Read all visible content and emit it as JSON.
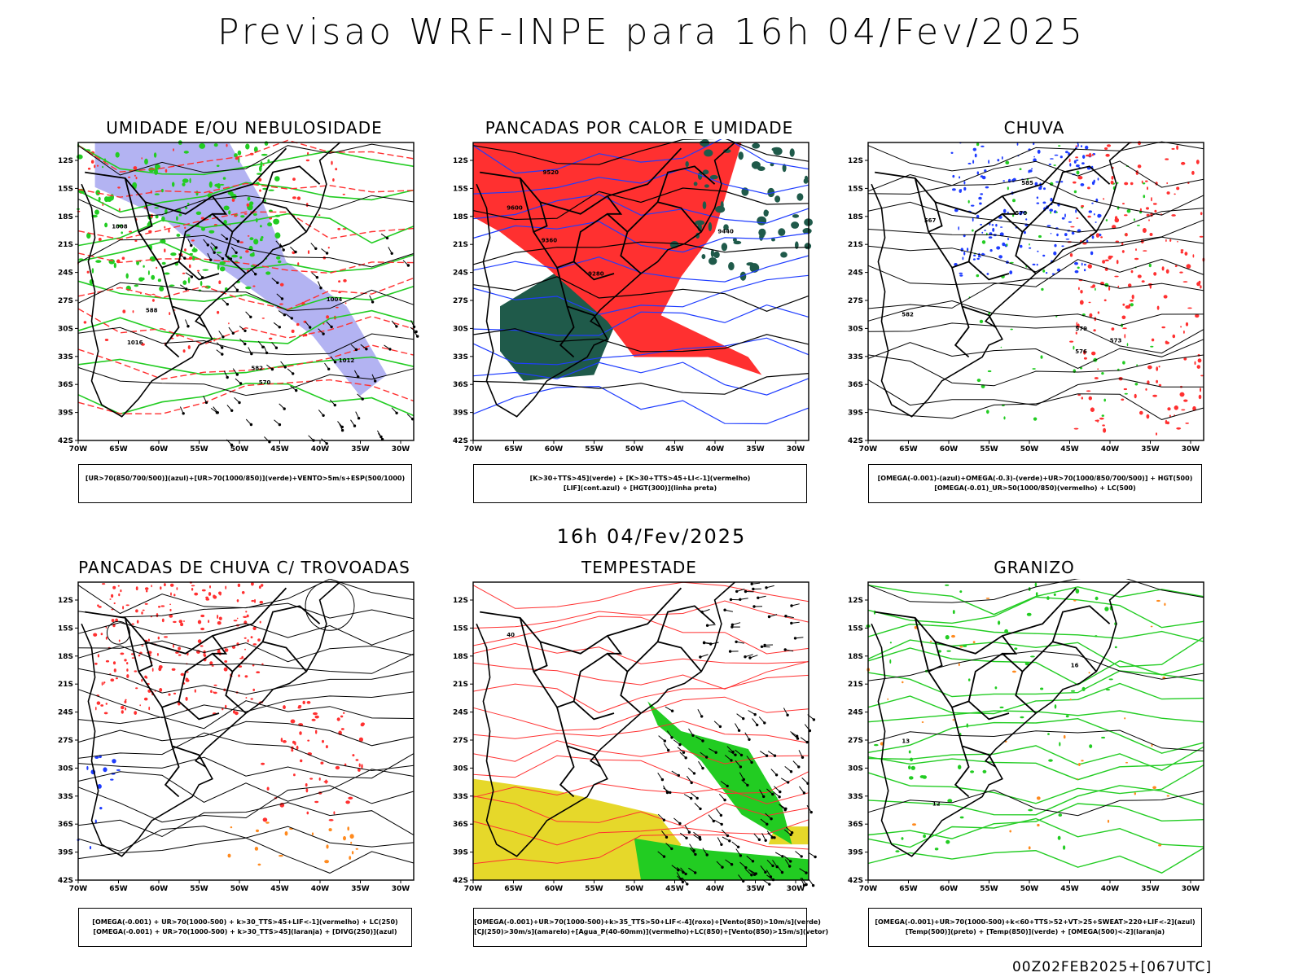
{
  "header": {
    "title": "Previsao WRF-INPE  para 16h 04/Fev/2025",
    "mid_time": "16h 04/Fev/2025",
    "footer": "00Z02FEB2025+[067UTC]"
  },
  "axes": {
    "lat_labels": [
      "12S",
      "15S",
      "18S",
      "21S",
      "24S",
      "27S",
      "30S",
      "33S",
      "36S",
      "39S",
      "42S"
    ],
    "lon_labels": [
      "70W",
      "65W",
      "60W",
      "55W",
      "50W",
      "45W",
      "40W",
      "35W",
      "30W"
    ]
  },
  "panels": [
    {
      "title": "UMIDADE E/OU NEBULOSIDADE",
      "legend": [
        "[UR>70(850/700/500)](azul)+[UR>70(1000/850)](verde)+VENTO>5m/s+ESP(500/1000)"
      ],
      "contour_labels": [
        "1008",
        "1012",
        "1016",
        "1004",
        "570",
        "582",
        "588"
      ]
    },
    {
      "title": "PANCADAS POR CALOR E UMIDADE",
      "legend": [
        "[K>30+TTS>45](verde) + [K>30+TTS>45+LI<-1](vermelho)",
        "[LIF](cont.azul) + [HGT(300)](linha preta)"
      ],
      "contour_labels": [
        "9600",
        "9520",
        "9440",
        "9360",
        "9280"
      ]
    },
    {
      "title": "CHUVA",
      "legend": [
        "[OMEGA(-0.001)-(azul)+OMEGA(-0.3)-(verde)+UR>70(1000/850/700/500)] + HGT(500)",
        "[OMEGA(-0.01)_UR>50(1000/850)(vermelho) + LC(500)"
      ],
      "contour_labels": [
        "582",
        "585",
        "579",
        "576",
        "573",
        "570",
        "567"
      ]
    },
    {
      "title": "PANCADAS DE CHUVA C/ TROVOADAS",
      "legend": [
        "[OMEGA(-0.001) + UR>70(1000-500) + k>30_TTS>45+LIF<-1](vermelho) + LC(250)",
        "[OMEGA(-0.001) + UR>70(1000-500) + k>30_TTS>45](laranja) + [DIVG(250)](azul)"
      ],
      "contour_labels": []
    },
    {
      "title": "TEMPESTADE",
      "legend": [
        "[OMEGA(-0.001)+UR>70(1000-500)+k>35_TTS>50+LIF<-4](roxo)+[Vento(850)>10m/s](verde)",
        "[CJ(250)>30m/s](amarelo)+[Agua_P(40-60mm)](vermelho)+LC(850)+[Vento(850)>15m/s](vetor)"
      ],
      "contour_labels": [
        "40"
      ]
    },
    {
      "title": "GRANIZO",
      "legend": [
        "[OMEGA(-0.001)+UR>70(1000-500)+k<60+TTS>52+VT>25+SWEAT>220+LIF<-2](azul)",
        "[Temp(500)](preto) + [Temp(850)](verde) + [OMEGA(500)<-2](laranja)"
      ],
      "contour_labels": [
        "13",
        "12",
        "16"
      ]
    }
  ],
  "colors": {
    "blue": "#1e3cff",
    "green": "#22cc22",
    "red": "#ff3030",
    "lavender": "#9999ee",
    "darkgreen": "#1f5a4a",
    "yellow": "#e6d82a",
    "orange": "#ff8a1e",
    "black": "#000000"
  }
}
